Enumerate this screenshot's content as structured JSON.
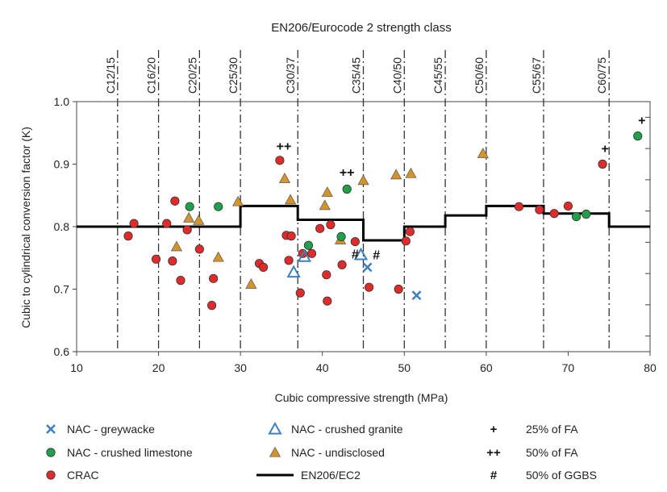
{
  "chart_data": {
    "type": "scatter",
    "title": "EN206/Eurocode 2 strength class",
    "xlabel": "Cubic compressive strength (MPa)",
    "ylabel": "Cubic to cylindrical conversion factor (K)",
    "xlim": [
      10,
      80
    ],
    "ylim": [
      0.6,
      1.0
    ],
    "x_ticks": [
      10,
      20,
      30,
      40,
      50,
      60,
      70,
      80
    ],
    "y_ticks": [
      "0.6",
      "0.7",
      "0.8",
      "0.9",
      "1.0"
    ],
    "grid": false,
    "legend_position": "bottom",
    "strength_classes": [
      {
        "label": "C12/15",
        "x": 15
      },
      {
        "label": "C16/20",
        "x": 20
      },
      {
        "label": "C20/25",
        "x": 25
      },
      {
        "label": "C25/30",
        "x": 30
      },
      {
        "label": "C30/37",
        "x": 37
      },
      {
        "label": "C35/45",
        "x": 45
      },
      {
        "label": "C40/50",
        "x": 50
      },
      {
        "label": "C45/55",
        "x": 55
      },
      {
        "label": "C50/60",
        "x": 60
      },
      {
        "label": "C55/67",
        "x": 67
      },
      {
        "label": "C60/75",
        "x": 75
      }
    ],
    "step_line": {
      "name": "EN206/EC2",
      "color": "#000000",
      "points": [
        [
          10,
          0.8
        ],
        [
          30,
          0.8
        ],
        [
          30,
          0.833
        ],
        [
          37,
          0.833
        ],
        [
          37,
          0.811
        ],
        [
          45,
          0.811
        ],
        [
          45,
          0.778
        ],
        [
          50,
          0.778
        ],
        [
          50,
          0.8
        ],
        [
          55,
          0.8
        ],
        [
          55,
          0.818
        ],
        [
          60,
          0.818
        ],
        [
          60,
          0.833
        ],
        [
          67,
          0.833
        ],
        [
          67,
          0.821
        ],
        [
          75,
          0.821
        ],
        [
          75,
          0.8
        ],
        [
          80,
          0.8
        ]
      ]
    },
    "series": [
      {
        "name": "NAC - greywacke",
        "marker": "x",
        "color": "#3d7fbf",
        "points": [
          [
            45.5,
            0.735
          ],
          [
            51.5,
            0.69
          ]
        ]
      },
      {
        "name": "NAC - crushed limestone",
        "marker": "circle",
        "color": "#1ea14a",
        "points": [
          [
            23.8,
            0.832
          ],
          [
            27.3,
            0.832
          ],
          [
            38.3,
            0.77
          ],
          [
            42.3,
            0.784
          ],
          [
            43.0,
            0.86
          ],
          [
            71.0,
            0.816
          ],
          [
            72.2,
            0.82
          ],
          [
            78.5,
            0.945
          ]
        ]
      },
      {
        "name": "CRAC",
        "marker": "circle",
        "color": "#e02b2b",
        "points": [
          [
            16.3,
            0.785
          ],
          [
            17.0,
            0.805
          ],
          [
            19.7,
            0.748
          ],
          [
            21.0,
            0.805
          ],
          [
            21.7,
            0.745
          ],
          [
            22.0,
            0.841
          ],
          [
            22.7,
            0.714
          ],
          [
            23.5,
            0.795
          ],
          [
            25.0,
            0.764
          ],
          [
            26.5,
            0.674
          ],
          [
            26.7,
            0.717
          ],
          [
            32.3,
            0.741
          ],
          [
            32.8,
            0.735
          ],
          [
            34.8,
            0.906
          ],
          [
            35.6,
            0.786
          ],
          [
            35.9,
            0.746
          ],
          [
            36.2,
            0.785
          ],
          [
            37.3,
            0.694
          ],
          [
            37.6,
            0.757
          ],
          [
            38.7,
            0.757
          ],
          [
            39.7,
            0.797
          ],
          [
            40.5,
            0.723
          ],
          [
            40.6,
            0.681
          ],
          [
            41.0,
            0.803
          ],
          [
            42.4,
            0.739
          ],
          [
            44.0,
            0.776
          ],
          [
            45.7,
            0.703
          ],
          [
            49.3,
            0.7
          ],
          [
            50.2,
            0.777
          ],
          [
            50.7,
            0.792
          ],
          [
            64.0,
            0.832
          ],
          [
            66.5,
            0.827
          ],
          [
            68.3,
            0.821
          ],
          [
            70.0,
            0.833
          ],
          [
            74.2,
            0.9
          ]
        ]
      },
      {
        "name": "NAC - crushed granite",
        "marker": "triangle-open",
        "color": "#3d7fbf",
        "points": [
          [
            36.5,
            0.727
          ],
          [
            37.8,
            0.752
          ],
          [
            44.7,
            0.755
          ]
        ]
      },
      {
        "name": "NAC - undisclosed",
        "marker": "triangle",
        "color": "#d4932b",
        "points": [
          [
            22.2,
            0.768
          ],
          [
            23.7,
            0.814
          ],
          [
            24.9,
            0.81
          ],
          [
            27.3,
            0.751
          ],
          [
            29.7,
            0.84
          ],
          [
            31.3,
            0.708
          ],
          [
            35.4,
            0.877
          ],
          [
            36.1,
            0.843
          ],
          [
            40.3,
            0.834
          ],
          [
            40.6,
            0.855
          ],
          [
            42.2,
            0.779
          ],
          [
            45.0,
            0.874
          ],
          [
            49.0,
            0.883
          ],
          [
            50.8,
            0.885
          ],
          [
            59.6,
            0.917
          ]
        ]
      }
    ],
    "annotations": [
      {
        "text": "++",
        "x": 35.3,
        "y": 0.922
      },
      {
        "text": "++",
        "x": 43.0,
        "y": 0.88
      },
      {
        "text": "#",
        "x": 44.0,
        "y": 0.749
      },
      {
        "text": "#",
        "x": 46.6,
        "y": 0.748
      },
      {
        "text": "+",
        "x": 74.5,
        "y": 0.918
      },
      {
        "text": "+",
        "x": 79.0,
        "y": 0.963
      }
    ],
    "legend": [
      {
        "label": "NAC - greywacke",
        "marker": "x",
        "color": "#3d7fbf"
      },
      {
        "label": "NAC - crushed limestone",
        "marker": "circle",
        "color": "#1ea14a"
      },
      {
        "label": "CRAC",
        "marker": "circle",
        "color": "#e02b2b"
      },
      {
        "label": "NAC - crushed granite",
        "marker": "triangle-open",
        "color": "#3d7fbf"
      },
      {
        "label": "NAC - undisclosed",
        "marker": "triangle",
        "color": "#d4932b"
      },
      {
        "label": "EN206/EC2",
        "marker": "line",
        "color": "#000000"
      }
    ],
    "notes": [
      {
        "symbol": "+",
        "text": "25% of FA"
      },
      {
        "symbol": "++",
        "text": "50% of FA"
      },
      {
        "symbol": "#",
        "text": "50% of GGBS"
      }
    ]
  }
}
